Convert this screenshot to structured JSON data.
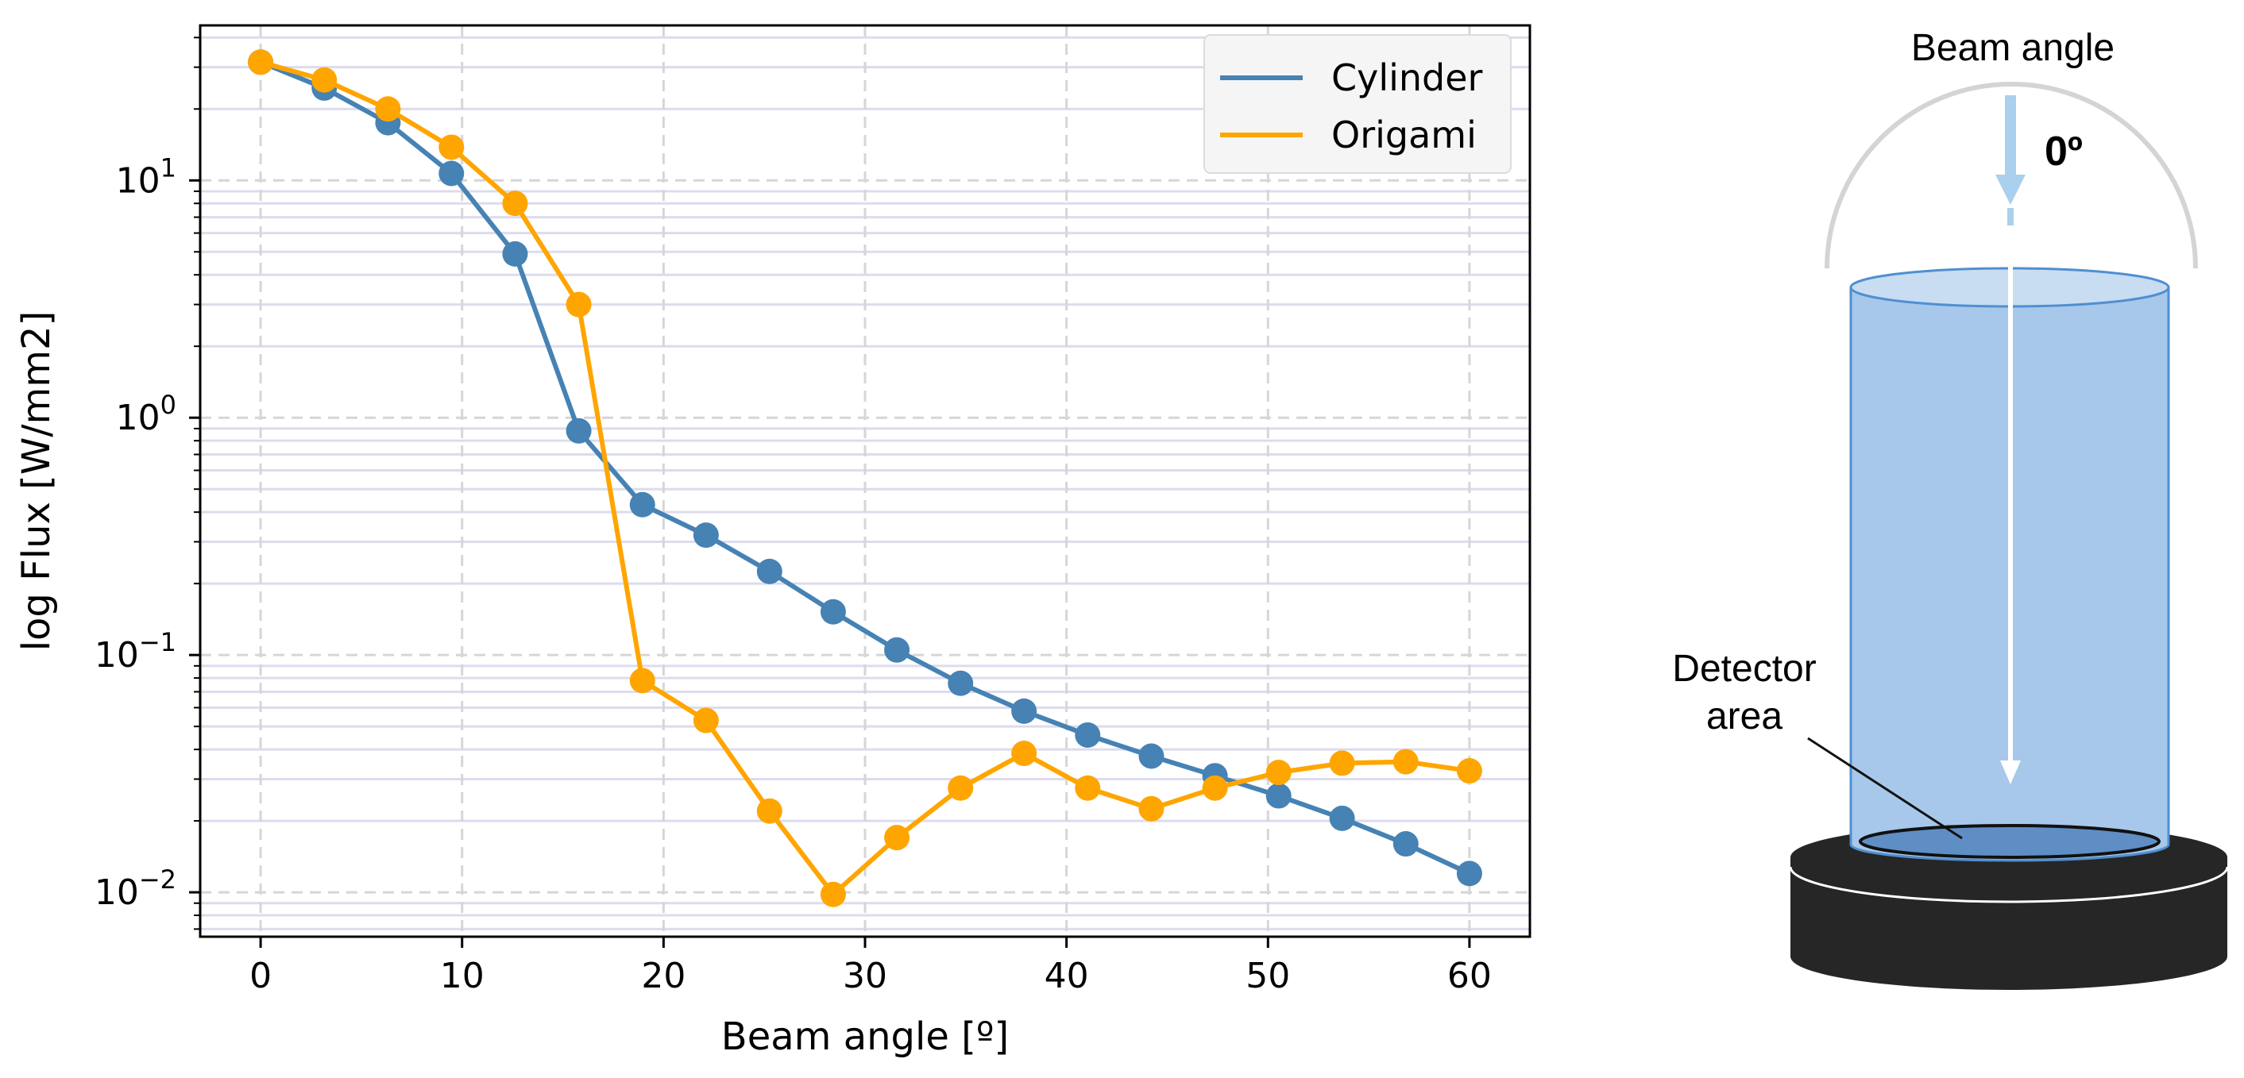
{
  "chart_data": {
    "type": "line",
    "x": [
      0,
      3.16,
      6.32,
      9.47,
      12.63,
      15.79,
      18.95,
      22.11,
      25.26,
      28.42,
      31.58,
      34.74,
      37.89,
      41.05,
      44.21,
      47.37,
      50.53,
      53.68,
      56.84,
      60
    ],
    "series": [
      {
        "name": "Cylinder",
        "color": "#4682b4",
        "values": [
          31.5,
          24.5,
          17.5,
          10.7,
          4.9,
          0.88,
          0.43,
          0.32,
          0.225,
          0.152,
          0.105,
          0.076,
          0.058,
          0.046,
          0.0375,
          0.031,
          0.0255,
          0.0205,
          0.016,
          0.012
        ]
      },
      {
        "name": "Origami",
        "color": "#ffa500",
        "values": [
          31.5,
          26.5,
          20.0,
          13.8,
          8.0,
          3.0,
          0.078,
          0.053,
          0.022,
          0.0098,
          0.017,
          0.0275,
          0.0385,
          0.0275,
          0.0225,
          0.0275,
          0.032,
          0.035,
          0.0355,
          0.0325
        ]
      }
    ],
    "title": "",
    "xlabel": "Beam angle [º]",
    "ylabel": "log Flux [W/mm2]",
    "xlim": [
      -3,
      63
    ],
    "ylim": [
      0.0065,
      45
    ],
    "yscale": "log",
    "xticks": [
      0,
      10,
      20,
      30,
      40,
      50,
      60
    ],
    "yticks": [
      {
        "value": 10,
        "base": "10",
        "exp": "1"
      },
      {
        "value": 1,
        "base": "10",
        "exp": "0"
      },
      {
        "value": 0.1,
        "base": "10",
        "exp": "−1"
      },
      {
        "value": 0.01,
        "base": "10",
        "exp": "−2"
      }
    ],
    "grid": true,
    "legend": "upper right"
  },
  "diagram": {
    "beam_angle_label": "Beam angle",
    "angle_value": "0º",
    "detector_label_line1": "Detector",
    "detector_label_line2": "area",
    "colors": {
      "cylinder_fill": "#a7c8ea",
      "cylinder_edge": "#4f8fd0",
      "detector_fill": "#5f8ec4",
      "base": "#262626",
      "arc": "#d4d4d4",
      "beam_arrow": "#a9d0ec"
    }
  }
}
